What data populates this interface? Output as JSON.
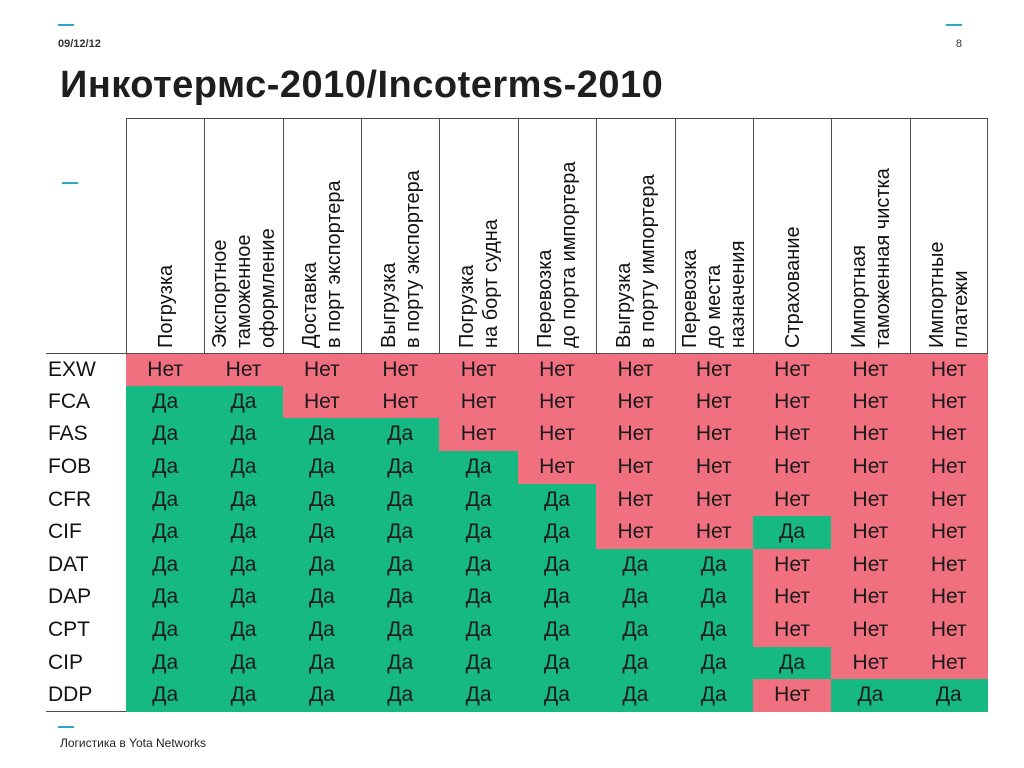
{
  "slide": {
    "date": "09/12/12",
    "page_number": "8",
    "title": "Инкотермс-2010/Incoterms-2010",
    "footer": "Логистика в Yota Networks",
    "colors": {
      "yes": "#16b982",
      "no": "#f1707f",
      "accent": "#2aa7c9"
    }
  },
  "table": {
    "columns": [
      "Погрузка",
      "Экспортное\nтаможенное\nоформление",
      "Доставка\nв порт экспортера",
      "Выгрузка\nв порту экспортера",
      "Погрузка\nна борт судна",
      "Перевозка\nдо порта импортера",
      "Выгрузка\nв порту импортера",
      "Перевозка\nдо места\nназначения",
      "Страхование",
      "Импортная\nтаможенная чистка",
      "Импортные\nплатежи"
    ],
    "rows": [
      {
        "term": "EXW",
        "values": [
          "Нет",
          "Нет",
          "Нет",
          "Нет",
          "Нет",
          "Нет",
          "Нет",
          "Нет",
          "Нет",
          "Нет",
          "Нет"
        ]
      },
      {
        "term": "FCA",
        "values": [
          "Да",
          "Да",
          "Нет",
          "Нет",
          "Нет",
          "Нет",
          "Нет",
          "Нет",
          "Нет",
          "Нет",
          "Нет"
        ]
      },
      {
        "term": "FAS",
        "values": [
          "Да",
          "Да",
          "Да",
          "Да",
          "Нет",
          "Нет",
          "Нет",
          "Нет",
          "Нет",
          "Нет",
          "Нет"
        ]
      },
      {
        "term": "FOB",
        "values": [
          "Да",
          "Да",
          "Да",
          "Да",
          "Да",
          "Нет",
          "Нет",
          "Нет",
          "Нет",
          "Нет",
          "Нет"
        ]
      },
      {
        "term": "CFR",
        "values": [
          "Да",
          "Да",
          "Да",
          "Да",
          "Да",
          "Да",
          "Нет",
          "Нет",
          "Нет",
          "Нет",
          "Нет"
        ]
      },
      {
        "term": "CIF",
        "values": [
          "Да",
          "Да",
          "Да",
          "Да",
          "Да",
          "Да",
          "Нет",
          "Нет",
          "Да",
          "Нет",
          "Нет"
        ]
      },
      {
        "term": "DAT",
        "values": [
          "Да",
          "Да",
          "Да",
          "Да",
          "Да",
          "Да",
          "Да",
          "Да",
          "Нет",
          "Нет",
          "Нет"
        ]
      },
      {
        "term": "DAP",
        "values": [
          "Да",
          "Да",
          "Да",
          "Да",
          "Да",
          "Да",
          "Да",
          "Да",
          "Нет",
          "Нет",
          "Нет"
        ]
      },
      {
        "term": "CPT",
        "values": [
          "Да",
          "Да",
          "Да",
          "Да",
          "Да",
          "Да",
          "Да",
          "Да",
          "Нет",
          "Нет",
          "Нет"
        ]
      },
      {
        "term": "CIP",
        "values": [
          "Да",
          "Да",
          "Да",
          "Да",
          "Да",
          "Да",
          "Да",
          "Да",
          "Да",
          "Нет",
          "Нет"
        ]
      },
      {
        "term": "DDP",
        "values": [
          "Да",
          "Да",
          "Да",
          "Да",
          "Да",
          "Да",
          "Да",
          "Да",
          "Нет",
          "Да",
          "Да"
        ]
      }
    ]
  }
}
